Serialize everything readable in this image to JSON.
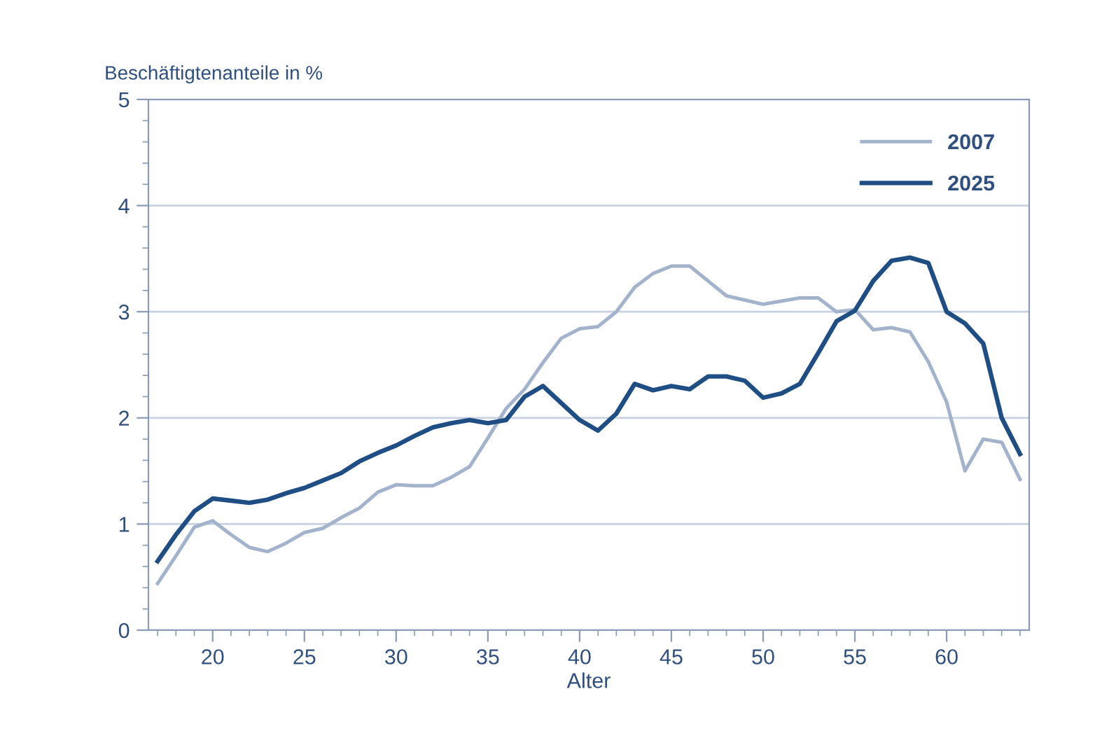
{
  "chart_data": {
    "type": "line",
    "xlabel": "Alter",
    "ylabel": "Beschäftigtenanteile in %",
    "x": [
      17,
      18,
      19,
      20,
      21,
      22,
      23,
      24,
      25,
      26,
      27,
      28,
      29,
      30,
      31,
      32,
      33,
      34,
      35,
      36,
      37,
      38,
      39,
      40,
      41,
      42,
      43,
      44,
      45,
      46,
      47,
      48,
      49,
      50,
      51,
      52,
      53,
      54,
      55,
      56,
      57,
      58,
      59,
      60,
      61,
      62,
      63,
      64
    ],
    "series": [
      {
        "name": "2007",
        "color": "#a3b3cc",
        "values": [
          0.44,
          0.7,
          0.97,
          1.03,
          0.9,
          0.78,
          0.74,
          0.82,
          0.92,
          0.96,
          1.06,
          1.15,
          1.3,
          1.37,
          1.36,
          1.36,
          1.44,
          1.54,
          1.81,
          2.09,
          2.27,
          2.52,
          2.75,
          2.84,
          2.86,
          3.0,
          3.23,
          3.36,
          3.43,
          3.43,
          3.29,
          3.15,
          3.11,
          3.07,
          3.1,
          3.13,
          3.13,
          3.0,
          3.02,
          2.83,
          2.85,
          2.81,
          2.53,
          2.15,
          1.5,
          1.8,
          1.77,
          1.42
        ]
      },
      {
        "name": "2025",
        "color": "#1f4e85",
        "values": [
          0.65,
          0.9,
          1.12,
          1.24,
          1.22,
          1.2,
          1.23,
          1.29,
          1.34,
          1.41,
          1.48,
          1.59,
          1.67,
          1.74,
          1.83,
          1.91,
          1.95,
          1.98,
          1.95,
          1.98,
          2.2,
          2.3,
          2.14,
          1.98,
          1.88,
          2.04,
          2.32,
          2.26,
          2.3,
          2.27,
          2.39,
          2.39,
          2.35,
          2.19,
          2.23,
          2.32,
          2.61,
          2.91,
          3.01,
          3.29,
          3.48,
          3.51,
          3.46,
          3.0,
          2.89,
          2.7,
          2.0,
          1.66
        ]
      }
    ],
    "xlim": [
      16.5,
      64.5
    ],
    "ylim": [
      0,
      5
    ],
    "xticks": [
      {
        "value": 17,
        "label": null
      },
      {
        "value": 18,
        "label": null
      },
      {
        "value": 19,
        "label": null
      },
      20,
      {
        "value": 21,
        "label": null
      },
      {
        "value": 22,
        "label": null
      },
      {
        "value": 23,
        "label": null
      },
      {
        "value": 24,
        "label": null
      },
      25,
      {
        "value": 26,
        "label": null
      },
      {
        "value": 27,
        "label": null
      },
      {
        "value": 28,
        "label": null
      },
      {
        "value": 29,
        "label": null
      },
      30,
      {
        "value": 31,
        "label": null
      },
      {
        "value": 32,
        "label": null
      },
      {
        "value": 33,
        "label": null
      },
      {
        "value": 34,
        "label": null
      },
      35,
      {
        "value": 36,
        "label": null
      },
      {
        "value": 37,
        "label": null
      },
      {
        "value": 38,
        "label": null
      },
      {
        "value": 39,
        "label": null
      },
      40,
      {
        "value": 41,
        "label": null
      },
      {
        "value": 42,
        "label": null
      },
      {
        "value": 43,
        "label": null
      },
      {
        "value": 44,
        "label": null
      },
      45,
      {
        "value": 46,
        "label": null
      },
      {
        "value": 47,
        "label": null
      },
      {
        "value": 48,
        "label": null
      },
      {
        "value": 49,
        "label": null
      },
      50,
      {
        "value": 51,
        "label": null
      },
      {
        "value": 52,
        "label": null
      },
      {
        "value": 53,
        "label": null
      },
      {
        "value": 54,
        "label": null
      },
      55,
      {
        "value": 56,
        "label": null
      },
      {
        "value": 57,
        "label": null
      },
      {
        "value": 58,
        "label": null
      },
      {
        "value": 59,
        "label": null
      },
      60,
      {
        "value": 61,
        "label": null
      },
      {
        "value": 62,
        "label": null
      },
      {
        "value": 63,
        "label": null
      },
      {
        "value": 64,
        "label": null
      }
    ],
    "yticks": [
      0,
      {
        "value": 0.2,
        "label": null
      },
      {
        "value": 0.4,
        "label": null
      },
      {
        "value": 0.6,
        "label": null
      },
      {
        "value": 0.8,
        "label": null
      },
      1,
      {
        "value": 1.2,
        "label": null
      },
      {
        "value": 1.4,
        "label": null
      },
      {
        "value": 1.6,
        "label": null
      },
      {
        "value": 1.8,
        "label": null
      },
      2,
      {
        "value": 2.2,
        "label": null
      },
      {
        "value": 2.4,
        "label": null
      },
      {
        "value": 2.6,
        "label": null
      },
      {
        "value": 2.8,
        "label": null
      },
      3,
      {
        "value": 3.2,
        "label": null
      },
      {
        "value": 3.4,
        "label": null
      },
      {
        "value": 3.6,
        "label": null
      },
      {
        "value": 3.8,
        "label": null
      },
      4,
      {
        "value": 4.2,
        "label": null
      },
      {
        "value": 4.4,
        "label": null
      },
      {
        "value": 4.6,
        "label": null
      },
      {
        "value": 4.8,
        "label": null
      },
      5
    ],
    "grid": "y",
    "legend": "top right",
    "marker": "none",
    "line_style": "solid"
  }
}
